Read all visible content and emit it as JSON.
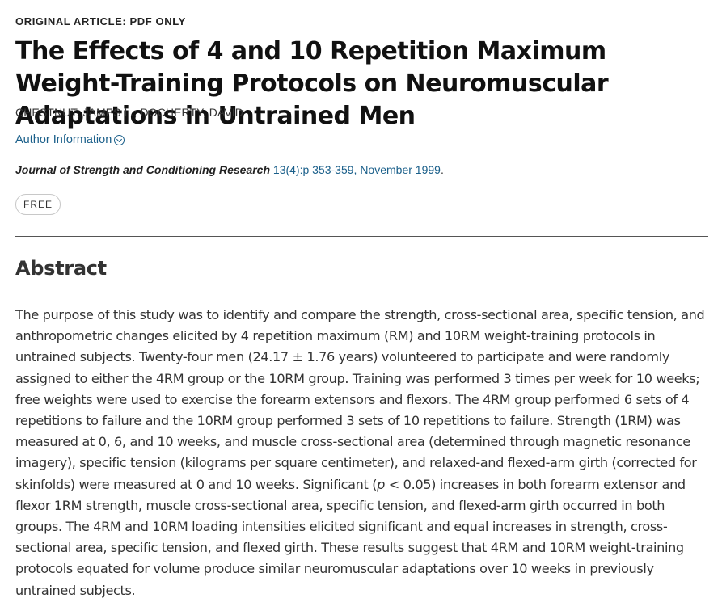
{
  "article": {
    "type_label": "ORIGINAL ARTICLE: PDF ONLY",
    "title": "The Effects of 4 and 10 Repetition Maximum Weight-Training Protocols on Neuromuscular Adaptations in Untrained Men",
    "authors": "CHESTNUT, JAMES L.; DOCHERTY, DAVID",
    "author_info_label": "Author Information",
    "author_info_icon": "chevron-down-circle-icon",
    "citation": {
      "journal": "Journal of Strength and Conditioning Research",
      "volume_issue_pages": "13(4):p 353-359, November 1999",
      "trailing": "."
    },
    "access_badge": "FREE"
  },
  "abstract": {
    "heading": "Abstract",
    "text_before_p": "The purpose of this study was to identify and compare the strength, cross-sectional area, specific tension, and anthropometric changes elicited by 4 repetition maximum (RM) and 10RM weight-training protocols in untrained subjects. Twenty-four men (24.17 ± 1.76 years) volunteered to participate and were randomly assigned to either the 4RM group or the 10RM group. Training was performed 3 times per week for 10 weeks; free weights were used to exercise the forearm extensors and flexors. The 4RM group performed 6 sets of 4 repetitions to failure and the 10RM group performed 3 sets of 10 repetitions to failure. Strength (1RM) was measured at 0, 6, and 10 weeks, and muscle cross-sectional area (determined through magnetic resonance imagery), specific tension (kilograms per square centimeter), and relaxed-and flexed-arm girth (corrected for skinfolds) were measured at 0 and 10 weeks. Significant (",
    "p_symbol": "p",
    "text_after_p": " < 0.05) increases in both forearm extensor and flexor 1RM strength, muscle cross-sectional area, specific tension, and flexed-arm girth occurred in both groups. The 4RM and 10RM loading intensities elicited significant and equal increases in strength, cross-sectional area, specific tension, and flexed girth. These results suggest that 4RM and 10RM weight-training protocols equated for volume produce similar neuromuscular adaptations over 10 weeks in previously untrained subjects."
  },
  "colors": {
    "link": "#1a5f8a",
    "text": "#333333",
    "divider": "#555555"
  }
}
